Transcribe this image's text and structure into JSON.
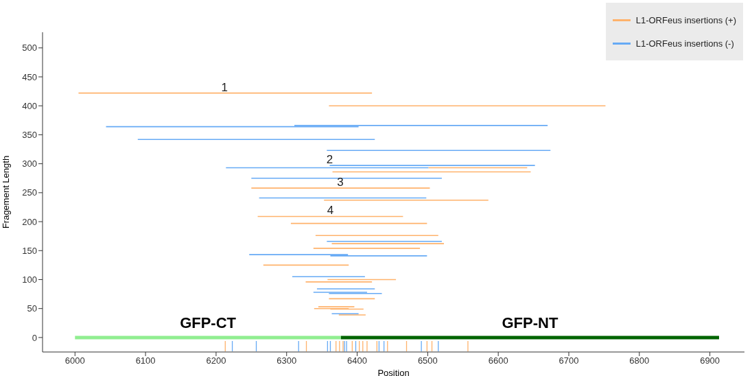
{
  "chart_data": {
    "type": "line",
    "xlabel": "Position",
    "ylabel": "Fragement Length",
    "xlim": [
      5954,
      6949
    ],
    "ylim": [
      -25,
      527
    ],
    "xticks": [
      6000,
      6100,
      6200,
      6300,
      6400,
      6500,
      6600,
      6700,
      6800,
      6900
    ],
    "yticks": [
      0,
      50,
      100,
      150,
      200,
      250,
      300,
      350,
      400,
      450,
      500
    ],
    "grid": false,
    "legend": "top right",
    "marker": "none",
    "line_style": "solid",
    "annotations": [
      {
        "text": "1",
        "x": 6212,
        "y": 422
      },
      {
        "text": "2",
        "x": 6361,
        "y": 297
      },
      {
        "text": "3",
        "x": 6376,
        "y": 258
      },
      {
        "text": "4",
        "x": 6362,
        "y": 209
      }
    ],
    "series": [
      {
        "name": "L1-ORFeus insertions (+)",
        "color": "#ffb26b",
        "x": [
          6005,
          6421
        ],
        "values": [
          422,
          422
        ]
      },
      {
        "color": "#ffb26b",
        "x": [
          6360,
          6752
        ],
        "values": [
          400,
          400
        ]
      },
      {
        "color": "#ffb26b",
        "x": [
          6501,
          6641
        ],
        "values": [
          293,
          293
        ]
      },
      {
        "color": "#ffb26b",
        "x": [
          6365,
          6646
        ],
        "values": [
          286,
          286
        ]
      },
      {
        "color": "#ffb26b",
        "x": [
          6250,
          6503
        ],
        "values": [
          258,
          258
        ]
      },
      {
        "color": "#ffb26b",
        "x": [
          6353,
          6586
        ],
        "values": [
          237,
          237
        ]
      },
      {
        "color": "#ffb26b",
        "x": [
          6259,
          6465
        ],
        "values": [
          209,
          209
        ]
      },
      {
        "color": "#ffb26b",
        "x": [
          6306,
          6499
        ],
        "values": [
          197,
          197
        ]
      },
      {
        "color": "#ffb26b",
        "x": [
          6341,
          6515
        ],
        "values": [
          176,
          176
        ]
      },
      {
        "color": "#ffb26b",
        "x": [
          6364,
          6523
        ],
        "values": [
          162,
          162
        ]
      },
      {
        "color": "#ffb26b",
        "x": [
          6338,
          6489
        ],
        "values": [
          154,
          154
        ]
      },
      {
        "color": "#ffb26b",
        "x": [
          6267,
          6388
        ],
        "values": [
          125,
          125
        ]
      },
      {
        "color": "#ffb26b",
        "x": [
          6358,
          6455
        ],
        "values": [
          100,
          100
        ]
      },
      {
        "color": "#ffb26b",
        "x": [
          6327,
          6421
        ],
        "values": [
          96,
          96
        ]
      },
      {
        "color": "#ffb26b",
        "x": [
          6360,
          6425
        ],
        "values": [
          67,
          67
        ]
      },
      {
        "color": "#ffb26b",
        "x": [
          6345,
          6396
        ],
        "values": [
          53,
          53
        ]
      },
      {
        "color": "#ffb26b",
        "x": [
          6339,
          6388
        ],
        "values": [
          50,
          50
        ]
      },
      {
        "color": "#ffb26b",
        "x": [
          6362,
          6409
        ],
        "values": [
          49,
          49
        ]
      },
      {
        "color": "#ffb26b",
        "x": [
          6374,
          6412
        ],
        "values": [
          39,
          39
        ]
      },
      {
        "name": "L1-ORFeus insertions (-)",
        "color": "#66aaf5",
        "x": [
          6044,
          6402
        ],
        "values": [
          364,
          364
        ]
      },
      {
        "color": "#66aaf5",
        "x": [
          6311,
          6670
        ],
        "values": [
          366,
          366
        ]
      },
      {
        "color": "#66aaf5",
        "x": [
          6089,
          6425
        ],
        "values": [
          342,
          342
        ]
      },
      {
        "color": "#66aaf5",
        "x": [
          6357,
          6674
        ],
        "values": [
          323,
          323
        ]
      },
      {
        "color": "#66aaf5",
        "x": [
          6361,
          6652
        ],
        "values": [
          297,
          297
        ]
      },
      {
        "color": "#66aaf5",
        "x": [
          6214,
          6501
        ],
        "values": [
          293,
          293
        ]
      },
      {
        "color": "#66aaf5",
        "x": [
          6250,
          6520
        ],
        "values": [
          275,
          275
        ]
      },
      {
        "color": "#66aaf5",
        "x": [
          6261,
          6498
        ],
        "values": [
          241,
          241
        ]
      },
      {
        "color": "#66aaf5",
        "x": [
          6357,
          6520
        ],
        "values": [
          166,
          166
        ]
      },
      {
        "color": "#66aaf5",
        "x": [
          6247,
          6387
        ],
        "values": [
          143,
          143
        ]
      },
      {
        "color": "#66aaf5",
        "x": [
          6362,
          6499
        ],
        "values": [
          141,
          141
        ]
      },
      {
        "color": "#66aaf5",
        "x": [
          6308,
          6411
        ],
        "values": [
          105,
          105
        ]
      },
      {
        "color": "#66aaf5",
        "x": [
          6343,
          6425
        ],
        "values": [
          84,
          84
        ]
      },
      {
        "color": "#66aaf5",
        "x": [
          6338,
          6414
        ],
        "values": [
          78,
          78
        ]
      },
      {
        "color": "#66aaf5",
        "x": [
          6360,
          6435
        ],
        "values": [
          76,
          76
        ]
      },
      {
        "color": "#66aaf5",
        "x": [
          6364,
          6402
        ],
        "values": [
          41,
          41
        ]
      },
      {
        "color": "#ffb26b",
        "x": [
          6213,
          6213
        ],
        "values": [
          -24,
          -6
        ]
      },
      {
        "color": "#ffb26b",
        "x": [
          6328,
          6328
        ],
        "values": [
          -24,
          -6
        ]
      },
      {
        "color": "#ffb26b",
        "x": [
          6370,
          6370
        ],
        "values": [
          -24,
          -6
        ]
      },
      {
        "color": "#ffb26b",
        "x": [
          6375,
          6375
        ],
        "values": [
          -24,
          -6
        ]
      },
      {
        "color": "#ffb26b",
        "x": [
          6380,
          6380
        ],
        "values": [
          -24,
          -6
        ]
      },
      {
        "color": "#ffb26b",
        "x": [
          6393,
          6393
        ],
        "values": [
          -24,
          -6
        ]
      },
      {
        "color": "#ffb26b",
        "x": [
          6403,
          6403
        ],
        "values": [
          -24,
          -6
        ]
      },
      {
        "color": "#ffb26b",
        "x": [
          6408,
          6408
        ],
        "values": [
          -24,
          -6
        ]
      },
      {
        "color": "#ffb26b",
        "x": [
          6414,
          6414
        ],
        "values": [
          -24,
          -6
        ]
      },
      {
        "color": "#ffb26b",
        "x": [
          6428,
          6428
        ],
        "values": [
          -24,
          -6
        ]
      },
      {
        "color": "#ffb26b",
        "x": [
          6443,
          6443
        ],
        "values": [
          -24,
          -6
        ]
      },
      {
        "color": "#ffb26b",
        "x": [
          6470,
          6470
        ],
        "values": [
          -24,
          -6
        ]
      },
      {
        "color": "#ffb26b",
        "x": [
          6499,
          6499
        ],
        "values": [
          -24,
          -6
        ]
      },
      {
        "color": "#ffb26b",
        "x": [
          6506,
          6506
        ],
        "values": [
          -24,
          -6
        ]
      },
      {
        "color": "#ffb26b",
        "x": [
          6557,
          6557
        ],
        "values": [
          -24,
          -6
        ]
      },
      {
        "color": "#66aaf5",
        "x": [
          6223,
          6223
        ],
        "values": [
          -24,
          -6
        ]
      },
      {
        "color": "#66aaf5",
        "x": [
          6257,
          6257
        ],
        "values": [
          -24,
          -6
        ]
      },
      {
        "color": "#66aaf5",
        "x": [
          6317,
          6317
        ],
        "values": [
          -24,
          -6
        ]
      },
      {
        "color": "#66aaf5",
        "x": [
          6358,
          6358
        ],
        "values": [
          -24,
          -6
        ]
      },
      {
        "color": "#66aaf5",
        "x": [
          6362,
          6362
        ],
        "values": [
          -24,
          -6
        ]
      },
      {
        "color": "#66aaf5",
        "x": [
          6382,
          6382
        ],
        "values": [
          -24,
          -6
        ]
      },
      {
        "color": "#66aaf5",
        "x": [
          6385,
          6385
        ],
        "values": [
          -24,
          -6
        ]
      },
      {
        "color": "#66aaf5",
        "x": [
          6398,
          6398
        ],
        "values": [
          -24,
          -6
        ]
      },
      {
        "color": "#66aaf5",
        "x": [
          6431,
          6431
        ],
        "values": [
          -24,
          -6
        ]
      },
      {
        "color": "#66aaf5",
        "x": [
          6438,
          6438
        ],
        "values": [
          -24,
          -6
        ]
      },
      {
        "color": "#66aaf5",
        "x": [
          6491,
          6491
        ],
        "values": [
          -24,
          -6
        ]
      },
      {
        "color": "#66aaf5",
        "x": [
          6515,
          6515
        ],
        "values": [
          -24,
          -6
        ]
      },
      {
        "name": "GFP-CT",
        "color": "#90ee90",
        "x": [
          6000,
          6377
        ],
        "values": [
          0,
          0
        ]
      },
      {
        "name": "GFP-NT",
        "color": "#006400",
        "x": [
          6377,
          6913
        ],
        "values": [
          0,
          0
        ]
      }
    ]
  }
}
